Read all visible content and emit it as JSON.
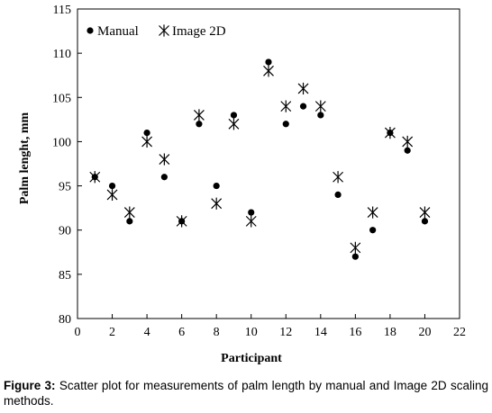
{
  "chart_data": {
    "type": "scatter",
    "title": "",
    "xlabel": "Participant",
    "ylabel": "Palm lenght, mm",
    "xlim": [
      0,
      22
    ],
    "ylim": [
      80,
      115
    ],
    "xticks": [
      0,
      2,
      4,
      6,
      8,
      10,
      12,
      14,
      16,
      18,
      20,
      22
    ],
    "yticks": [
      80,
      85,
      90,
      95,
      100,
      105,
      110,
      115
    ],
    "grid": false,
    "legend_position": "top-left",
    "series": [
      {
        "name": "Manual",
        "marker": "filled-circle",
        "color": "#000000",
        "x": [
          1,
          2,
          3,
          4,
          5,
          6,
          7,
          8,
          9,
          10,
          11,
          12,
          13,
          14,
          15,
          16,
          17,
          18,
          19,
          20
        ],
        "y": [
          96,
          95,
          91,
          101,
          96,
          91,
          102,
          95,
          103,
          92,
          109,
          102,
          104,
          103,
          94,
          87,
          90,
          101,
          99,
          91
        ]
      },
      {
        "name": "Image 2D",
        "marker": "asterisk",
        "color": "#000000",
        "x": [
          1,
          2,
          3,
          4,
          5,
          6,
          7,
          8,
          9,
          10,
          11,
          12,
          13,
          14,
          15,
          16,
          17,
          18,
          19,
          20
        ],
        "y": [
          96,
          94,
          92,
          100,
          98,
          91,
          103,
          93,
          102,
          91,
          108,
          104,
          106,
          104,
          96,
          88,
          92,
          101,
          100,
          92
        ]
      }
    ]
  },
  "caption": {
    "label": "Figure 3:",
    "text": " Scatter plot for measurements of palm length by manual and Image 2D scaling methods."
  }
}
